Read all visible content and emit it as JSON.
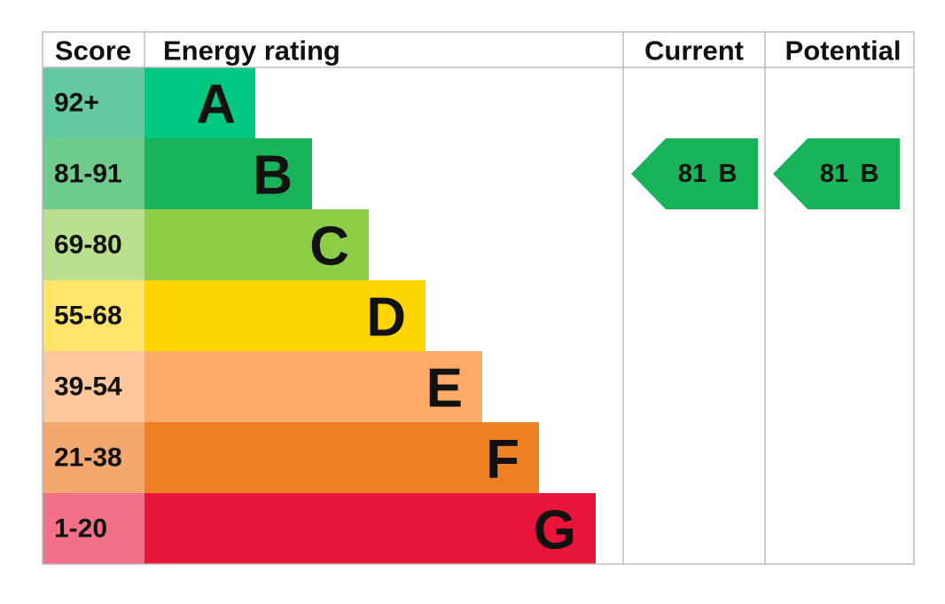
{
  "header": {
    "score": "Score",
    "energy_rating": "Energy rating",
    "current": "Current",
    "potential": "Potential"
  },
  "rows": [
    {
      "score": "92+",
      "band": "A",
      "color": "#00c781",
      "score_color": "#64c8a0"
    },
    {
      "score": "81-91",
      "band": "B",
      "color": "#19b459",
      "score_color": "#6fcb8b"
    },
    {
      "score": "69-80",
      "band": "C",
      "color": "#8dce46",
      "score_color": "#b9df8c"
    },
    {
      "score": "55-68",
      "band": "D",
      "color": "#ffd500",
      "score_color": "#ffe46c"
    },
    {
      "score": "39-54",
      "band": "E",
      "color": "#fcaa65",
      "score_color": "#fec79c"
    },
    {
      "score": "21-38",
      "band": "F",
      "color": "#ef8023",
      "score_color": "#f2a86e"
    },
    {
      "score": "1-20",
      "band": "G",
      "color": "#e9153b",
      "score_color": "#f27189"
    }
  ],
  "current": {
    "value": 81,
    "band": "B"
  },
  "potential": {
    "value": 81,
    "band": "B"
  }
}
